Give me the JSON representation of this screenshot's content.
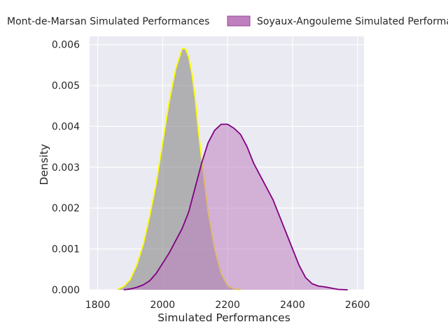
{
  "chart_data": {
    "type": "area",
    "title": "",
    "xlabel": "Simulated Performances",
    "ylabel": "Density",
    "xlim": [
      1775,
      2620
    ],
    "ylim": [
      0,
      0.0062
    ],
    "grid": true,
    "legend_placement": "top",
    "x_ticks": [
      1800,
      2000,
      2200,
      2400,
      2600
    ],
    "x_tick_labels": [
      "1800",
      "2000",
      "2200",
      "2400",
      "2600"
    ],
    "y_ticks": [
      0,
      0.001,
      0.002,
      0.003,
      0.004,
      0.005,
      0.006
    ],
    "y_tick_labels": [
      "0.000",
      "0.001",
      "0.002",
      "0.003",
      "0.004",
      "0.005",
      "0.006"
    ],
    "series": [
      {
        "name": "Mont-de-Marsan Simulated Performances",
        "line_color": "#ffff00",
        "fill_color": "#808080",
        "x": [
          1860,
          1880,
          1900,
          1920,
          1940,
          1960,
          1980,
          2000,
          2020,
          2040,
          2060,
          2070,
          2080,
          2090,
          2100,
          2110,
          2120,
          2140,
          2160,
          2180,
          2200,
          2220,
          2240
        ],
        "y": [
          1e-05,
          8e-05,
          0.00025,
          0.0006,
          0.0011,
          0.0018,
          0.0026,
          0.0036,
          0.0046,
          0.0054,
          0.0059,
          0.0059,
          0.0057,
          0.0053,
          0.0047,
          0.0039,
          0.0032,
          0.0019,
          0.001,
          0.0004,
          0.0001,
          2e-05,
          0.0
        ]
      },
      {
        "name": "Soyaux-Angouleme Simulated Performances",
        "line_color": "#800080",
        "fill_color": "#bf7fbf",
        "x": [
          1880,
          1900,
          1920,
          1940,
          1960,
          1980,
          2000,
          2020,
          2040,
          2060,
          2080,
          2100,
          2120,
          2140,
          2160,
          2180,
          2200,
          2220,
          2240,
          2260,
          2280,
          2300,
          2320,
          2340,
          2360,
          2380,
          2400,
          2420,
          2440,
          2460,
          2480,
          2500,
          2520,
          2540,
          2570
        ],
        "y": [
          0.0,
          2e-05,
          6e-05,
          0.00012,
          0.00022,
          0.0004,
          0.00065,
          0.0009,
          0.0012,
          0.0015,
          0.0019,
          0.0025,
          0.0031,
          0.0036,
          0.0039,
          0.00405,
          0.00405,
          0.00395,
          0.0038,
          0.0035,
          0.0031,
          0.0028,
          0.0025,
          0.0022,
          0.0018,
          0.0014,
          0.001,
          0.0006,
          0.0003,
          0.00015,
          9e-05,
          7e-05,
          4e-05,
          1e-05,
          0.0
        ]
      }
    ]
  }
}
